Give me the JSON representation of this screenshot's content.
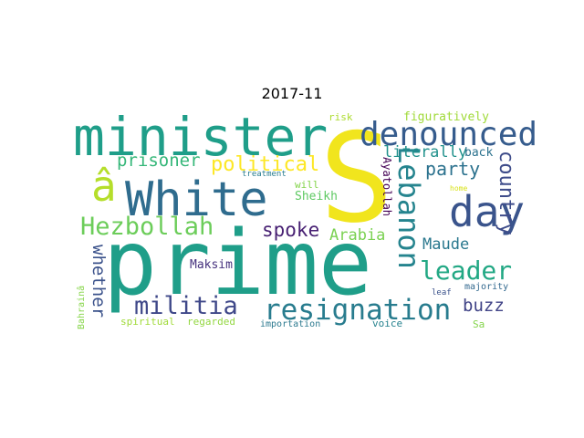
{
  "title": "2017-11",
  "colors": {
    "background": "#ffffff"
  },
  "words": [
    {
      "text": "prime",
      "color": "#1f9e89"
    },
    {
      "text": "S",
      "color": "#f1e51d"
    },
    {
      "text": "minister",
      "color": "#1f9e89"
    },
    {
      "text": "White",
      "color": "#2f6c8e"
    },
    {
      "text": "â",
      "color": "#b5de2b"
    },
    {
      "text": "day",
      "color": "#3a548c"
    },
    {
      "text": "denounced",
      "color": "#365c8d"
    },
    {
      "text": "Hezbollah",
      "color": "#6ccd5a"
    },
    {
      "text": "resignation",
      "color": "#287c8e"
    },
    {
      "text": "militia",
      "color": "#3f4889"
    },
    {
      "text": "leader",
      "color": "#22a884"
    },
    {
      "text": "Lebanon",
      "color": "#25848e"
    },
    {
      "text": "political",
      "color": "#fde725"
    },
    {
      "text": "prisoner",
      "color": "#35b779"
    },
    {
      "text": "party",
      "color": "#2c728e"
    },
    {
      "text": "country",
      "color": "#3e4c8a"
    },
    {
      "text": "spoke",
      "color": "#482173"
    },
    {
      "text": "Arabia",
      "color": "#7ad151"
    },
    {
      "text": "buzz",
      "color": "#414487"
    },
    {
      "text": "whether",
      "color": "#3b528b"
    },
    {
      "text": "Maude",
      "color": "#2a788e"
    },
    {
      "text": "literally",
      "color": "#21918c"
    },
    {
      "text": "figuratively",
      "color": "#a0da39"
    },
    {
      "text": "Ayatollah",
      "color": "#440154"
    },
    {
      "text": "Sheikh",
      "color": "#5ec962"
    },
    {
      "text": "back",
      "color": "#2c728e"
    },
    {
      "text": "Maksim",
      "color": "#46327e"
    },
    {
      "text": "will",
      "color": "#84d44b"
    },
    {
      "text": "risk",
      "color": "#addc30"
    },
    {
      "text": "treatment",
      "color": "#287c8e"
    },
    {
      "text": "home",
      "color": "#d8e219"
    },
    {
      "text": "majority",
      "color": "#31688e"
    },
    {
      "text": "leaf",
      "color": "#3b528b"
    },
    {
      "text": "Sa",
      "color": "#84d44b"
    },
    {
      "text": "Bahrainâ",
      "color": "#86d549"
    },
    {
      "text": "spiritual",
      "color": "#a0da39"
    },
    {
      "text": "regarded",
      "color": "#93d741"
    },
    {
      "text": "importation",
      "color": "#2a788e"
    },
    {
      "text": "voice",
      "color": "#26828e"
    }
  ]
}
